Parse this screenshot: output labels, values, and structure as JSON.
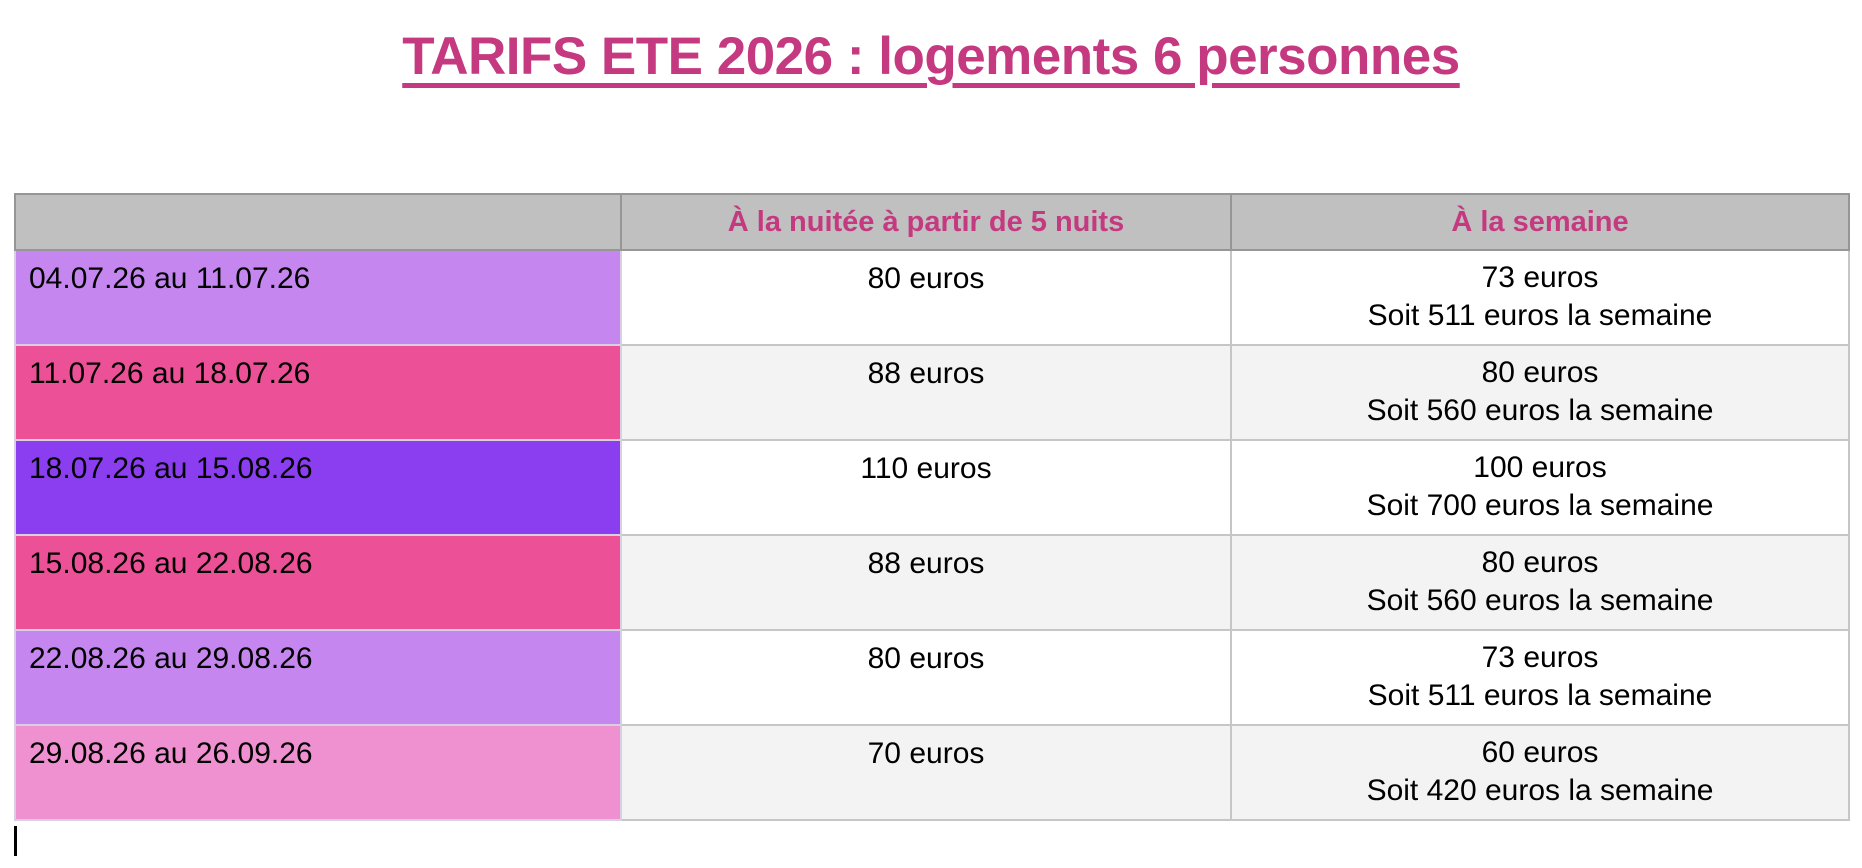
{
  "title": {
    "text": "TARIFS ETE 2026 : logements 6 personnes",
    "color": "#c4397f"
  },
  "colors": {
    "accent_pink": "#c4397f",
    "header_bg": "#bfc0bf",
    "alt_row_bg": "#f3f3f3",
    "white_row_bg": "#ffffff"
  },
  "table": {
    "header": {
      "empty": "",
      "nightly": "À la nuitée à partir de 5 nuits",
      "weekly": "À la semaine",
      "bg": "#bfc0bf",
      "text_color": "#c4397f"
    },
    "rows": [
      {
        "period": "04.07.26 au 11.07.26",
        "period_bg": "#c586f0",
        "nightly": "80 euros",
        "weekly_rate": "73 euros",
        "weekly_total": "Soit 511 euros la semaine",
        "row_bg": "#ffffff"
      },
      {
        "period": "11.07.26 au 18.07.26",
        "period_bg": "#ec5097",
        "nightly": "88 euros",
        "weekly_rate": "80 euros",
        "weekly_total": "Soit 560 euros la semaine",
        "row_bg": "#f3f3f3"
      },
      {
        "period": "18.07.26 au 15.08.26",
        "period_bg": "#8b3df0",
        "nightly": "110 euros",
        "weekly_rate": "100 euros",
        "weekly_total": "Soit 700 euros la semaine",
        "row_bg": "#ffffff"
      },
      {
        "period": "15.08.26 au 22.08.26",
        "period_bg": "#ec5097",
        "nightly": "88 euros",
        "weekly_rate": "80 euros",
        "weekly_total": "Soit 560 euros la semaine",
        "row_bg": "#f3f3f3"
      },
      {
        "period": "22.08.26 au 29.08.26",
        "period_bg": "#c586f0",
        "nightly": "80 euros",
        "weekly_rate": "73 euros",
        "weekly_total": "Soit 511 euros la semaine",
        "row_bg": "#ffffff"
      },
      {
        "period": "29.08.26 au 26.09.26",
        "period_bg": "#ef90d1",
        "nightly": "70 euros",
        "weekly_rate": "60 euros",
        "weekly_total": "Soit 420 euros la semaine",
        "row_bg": "#f3f3f3"
      }
    ]
  }
}
